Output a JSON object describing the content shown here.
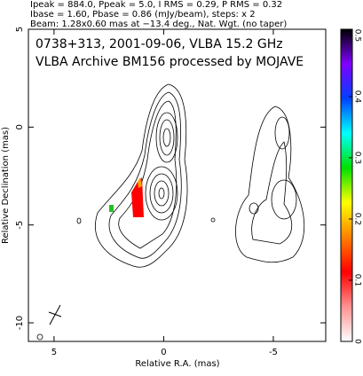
{
  "chart_data": {
    "type": "contour",
    "header": [
      "Ipeak = 884.0, Ppeak = 5.0, I RMS = 0.29, P RMS = 0.32",
      "Ibase = 1.60, Pbase = 0.86 (mJy/beam), steps: x 2",
      "Beam: 1.28x0.60 mas at −13.4 deg., Nat. Wgt. (no taper)"
    ],
    "annotations": [
      "0738+313, 2001-09-06, VLBA 15.2 GHz",
      "VLBA Archive BM156 processed by MOJAVE"
    ],
    "xlabel": "Relative R.A. (mas)",
    "ylabel": "Relative Declination (mas)",
    "xlim": [
      6.17,
      -7.39
    ],
    "xticks": [
      5,
      0,
      -5
    ],
    "ylim": [
      -10.95,
      5
    ],
    "yticks": [
      5,
      0,
      -5,
      -10
    ],
    "colorbar_lim": [
      0,
      0.51
    ],
    "colorbar_ticks": [
      0,
      0.1,
      0.2,
      0.3,
      0.4,
      0.5
    ],
    "colorbar_colors": [
      "#ffffff",
      "#ff9090",
      "#ff0000",
      "#ff8000",
      "#ffff00",
      "#00e000",
      "#00ffff",
      "#0040ff",
      "#8000ff",
      "#000000"
    ]
  }
}
